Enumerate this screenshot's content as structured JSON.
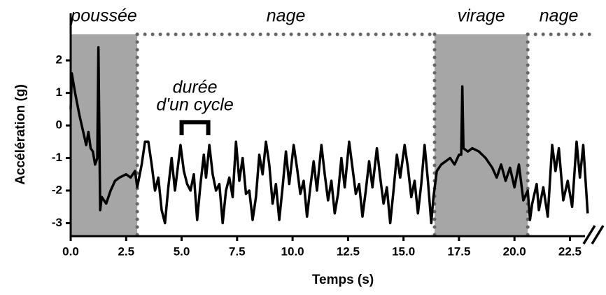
{
  "chart_data": {
    "type": "line",
    "x_label": "Temps (s)",
    "y_label": "Accélération (g)",
    "xlim": [
      0,
      23.4
    ],
    "ylim": [
      -3.4,
      2.8
    ],
    "xticks": [
      {
        "value": 0,
        "label": "0.0"
      },
      2.5,
      {
        "value": 5,
        "label": "5.0"
      },
      7.5,
      {
        "value": 10,
        "label": "10.0"
      },
      12.5,
      {
        "value": 15,
        "label": "15.0"
      },
      17.5,
      {
        "value": 20,
        "label": "20.0"
      },
      22.5
    ],
    "yticks": [
      -3,
      -2,
      -1,
      0,
      1,
      2
    ],
    "color": "#000000",
    "shade_color": "#a6a6a6",
    "phases": [
      {
        "label": "poussée",
        "start": 0,
        "end": 3.0,
        "style": "shaded"
      },
      {
        "label": "nage",
        "start": 3.0,
        "end": 16.4,
        "style": "dotted"
      },
      {
        "label": "virage",
        "start": 16.4,
        "end": 20.6,
        "style": "shaded"
      },
      {
        "label": "nage",
        "start": 20.6,
        "end": 23.4,
        "style": "dotted"
      }
    ],
    "annotation": {
      "lines": [
        "durée",
        "d'un cycle"
      ],
      "start": 5.0,
      "end": 6.2,
      "y": 0.1,
      "y_tip": -0.3
    },
    "x": [
      0,
      0.05,
      0.2,
      0.4,
      0.6,
      0.7,
      0.8,
      0.9,
      1.0,
      1.1,
      1.2,
      1.25,
      1.33,
      1.4,
      1.6,
      1.8,
      2.0,
      2.2,
      2.5,
      2.7,
      2.9,
      3.0,
      3.2,
      3.35,
      3.5,
      3.65,
      3.8,
      3.95,
      4.1,
      4.25,
      4.4,
      4.55,
      4.7,
      4.95,
      5.1,
      5.25,
      5.4,
      5.55,
      5.7,
      5.85,
      6.0,
      6.1,
      6.25,
      6.4,
      6.55,
      6.7,
      6.85,
      7.0,
      7.15,
      7.3,
      7.45,
      7.6,
      7.75,
      7.9,
      8.05,
      8.2,
      8.35,
      8.5,
      8.65,
      8.8,
      8.95,
      9.1,
      9.25,
      9.4,
      9.55,
      9.7,
      9.85,
      10.05,
      10.2,
      10.35,
      10.5,
      10.65,
      10.8,
      10.95,
      11.1,
      11.3,
      11.45,
      11.6,
      11.75,
      11.9,
      12.05,
      12.2,
      12.35,
      12.55,
      12.7,
      12.85,
      13.0,
      13.15,
      13.3,
      13.45,
      13.6,
      13.8,
      13.95,
      14.1,
      14.25,
      14.4,
      14.55,
      14.7,
      14.85,
      15.05,
      15.2,
      15.35,
      15.5,
      15.65,
      15.8,
      15.95,
      16.1,
      16.25,
      16.35,
      16.5,
      16.7,
      16.9,
      17.1,
      17.3,
      17.5,
      17.6,
      17.65,
      17.7,
      17.9,
      18.1,
      18.4,
      18.7,
      19.0,
      19.2,
      19.4,
      19.6,
      19.8,
      20.0,
      20.2,
      20.4,
      20.6,
      20.7,
      20.8,
      21.0,
      21.1,
      21.3,
      21.5,
      21.7,
      21.85,
      22.0,
      22.2,
      22.4,
      22.6,
      22.8,
      22.95,
      23.1,
      23.3
    ],
    "values": [
      0.5,
      1.6,
      1.0,
      0.3,
      -0.3,
      -0.6,
      -0.2,
      -0.7,
      -0.8,
      -1.2,
      -1.0,
      2.4,
      -2.6,
      -2.2,
      -2.4,
      -2.0,
      -1.7,
      -1.6,
      -1.5,
      -1.6,
      -1.4,
      -1.9,
      -1.2,
      -0.5,
      -0.5,
      -1.2,
      -2.0,
      -1.6,
      -2.6,
      -3.0,
      -1.9,
      -1.0,
      -2.0,
      -0.6,
      -1.4,
      -1.8,
      -2.0,
      -1.5,
      -2.9,
      -1.8,
      -0.9,
      -1.6,
      -0.6,
      -1.5,
      -2.0,
      -1.8,
      -3.0,
      -2.0,
      -1.6,
      -2.2,
      -0.5,
      -1.7,
      -1.0,
      -2.1,
      -2.0,
      -2.9,
      -2.2,
      -0.9,
      -1.5,
      -0.5,
      -1.2,
      -2.4,
      -1.8,
      -2.9,
      -1.9,
      -0.8,
      -1.8,
      -0.6,
      -1.3,
      -2.1,
      -1.7,
      -2.8,
      -1.9,
      -1.1,
      -2.0,
      -0.6,
      -1.5,
      -2.3,
      -1.7,
      -2.7,
      -2.1,
      -1.0,
      -1.9,
      -0.5,
      -1.3,
      -2.1,
      -1.8,
      -2.8,
      -2.0,
      -1.1,
      -1.9,
      -0.7,
      -1.6,
      -2.4,
      -1.9,
      -3.0,
      -2.0,
      -0.9,
      -1.6,
      -0.6,
      -1.3,
      -2.2,
      -1.7,
      -2.7,
      -1.8,
      -0.6,
      -1.7,
      -3.0,
      -2.2,
      -1.4,
      -1.2,
      -1.1,
      -1.0,
      -1.2,
      -0.9,
      -0.9,
      1.2,
      -0.7,
      -0.8,
      -0.7,
      -0.8,
      -1.0,
      -1.3,
      -1.6,
      -1.2,
      -1.7,
      -1.3,
      -1.9,
      -1.2,
      -2.3,
      -2.0,
      -2.9,
      -2.4,
      -1.8,
      -2.6,
      -1.9,
      -2.8,
      -0.6,
      -1.4,
      -0.7,
      -2.3,
      -1.7,
      -2.5,
      -0.5,
      -1.6,
      -0.6,
      -2.7
    ]
  }
}
